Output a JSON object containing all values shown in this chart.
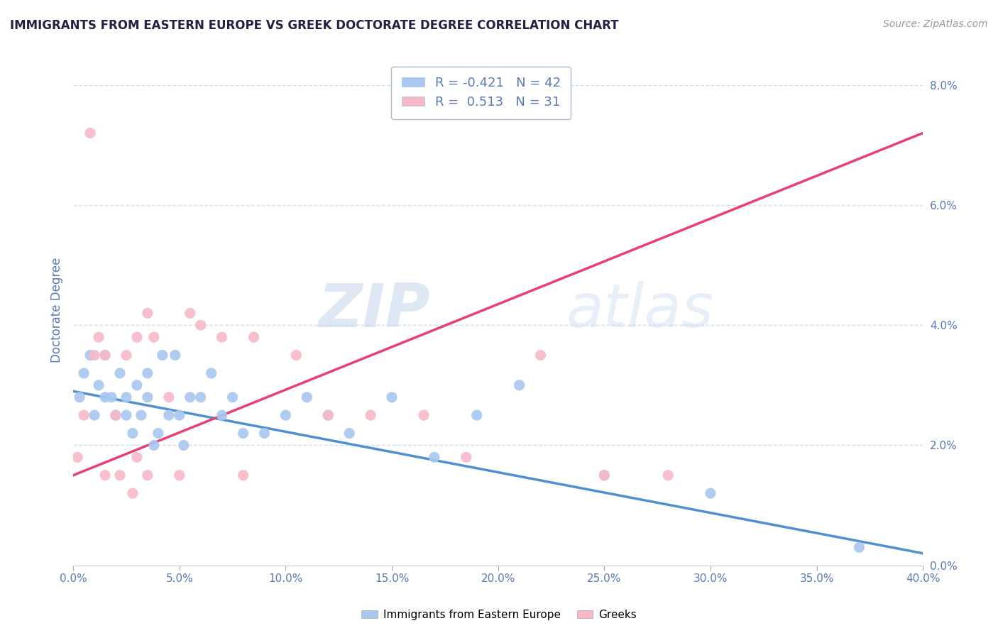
{
  "title": "IMMIGRANTS FROM EASTERN EUROPE VS GREEK DOCTORATE DEGREE CORRELATION CHART",
  "source": "Source: ZipAtlas.com",
  "xlabel_ticks": [
    "0.0%",
    "5.0%",
    "10.0%",
    "15.0%",
    "20.0%",
    "25.0%",
    "30.0%",
    "35.0%",
    "40.0%"
  ],
  "ylabel_ticks": [
    "0.0%",
    "2.0%",
    "4.0%",
    "6.0%",
    "8.0%"
  ],
  "xlabel_vals": [
    0,
    5,
    10,
    15,
    20,
    25,
    30,
    35,
    40
  ],
  "ylabel_vals": [
    0,
    2,
    4,
    6,
    8
  ],
  "xlim": [
    0,
    40
  ],
  "ylim": [
    0,
    8.5
  ],
  "ylabel": "Doctorate Degree",
  "watermark_zip": "ZIP",
  "watermark_atlas": "atlas",
  "legend_entries": [
    {
      "label": "R = -0.421   N = 42",
      "color": "#a8c8f0"
    },
    {
      "label": "R =  0.513   N = 31",
      "color": "#f8b8c8"
    }
  ],
  "blue_color": "#a8c8f0",
  "pink_color": "#f8b8c8",
  "blue_line_color": "#5090d0",
  "pink_line_color": "#e84070",
  "blue_scatter": {
    "x": [
      0.3,
      0.5,
      0.8,
      1.0,
      1.2,
      1.5,
      1.5,
      1.8,
      2.0,
      2.2,
      2.5,
      2.5,
      2.8,
      3.0,
      3.2,
      3.5,
      3.5,
      3.8,
      4.0,
      4.2,
      4.5,
      4.8,
      5.0,
      5.2,
      5.5,
      6.0,
      6.5,
      7.0,
      7.5,
      8.0,
      9.0,
      10.0,
      11.0,
      12.0,
      13.0,
      15.0,
      17.0,
      19.0,
      21.0,
      25.0,
      30.0,
      37.0
    ],
    "y": [
      2.8,
      3.2,
      3.5,
      2.5,
      3.0,
      2.8,
      3.5,
      2.8,
      2.5,
      3.2,
      2.5,
      2.8,
      2.2,
      3.0,
      2.5,
      3.2,
      2.8,
      2.0,
      2.2,
      3.5,
      2.5,
      3.5,
      2.5,
      2.0,
      2.8,
      2.8,
      3.2,
      2.5,
      2.8,
      2.2,
      2.2,
      2.5,
      2.8,
      2.5,
      2.2,
      2.8,
      1.8,
      2.5,
      3.0,
      1.5,
      1.2,
      0.3
    ]
  },
  "pink_scatter": {
    "x": [
      0.2,
      0.5,
      1.0,
      1.5,
      2.0,
      2.5,
      3.0,
      3.5,
      3.8,
      4.5,
      5.5,
      6.0,
      7.0,
      8.5,
      10.5,
      12.0,
      14.0,
      16.5,
      18.5,
      22.0,
      25.0,
      28.0,
      3.0,
      2.2,
      1.5,
      8.0,
      5.0,
      3.5,
      2.8,
      1.2,
      0.8
    ],
    "y": [
      1.8,
      2.5,
      3.5,
      3.5,
      2.5,
      3.5,
      3.8,
      4.2,
      3.8,
      2.8,
      4.2,
      4.0,
      3.8,
      3.8,
      3.5,
      2.5,
      2.5,
      2.5,
      1.8,
      3.5,
      1.5,
      1.5,
      1.8,
      1.5,
      1.5,
      1.5,
      1.5,
      1.5,
      1.2,
      3.8,
      7.2
    ]
  },
  "blue_trend": {
    "x_start": 0,
    "x_end": 40,
    "y_start": 2.9,
    "y_end": 0.2
  },
  "pink_trend": {
    "x_start": 0,
    "x_end": 40,
    "y_start": 1.5,
    "y_end": 7.2
  },
  "title_color": "#222244",
  "axis_color": "#5a7ab5",
  "grid_color": "#d0dff0",
  "background_color": "#ffffff"
}
